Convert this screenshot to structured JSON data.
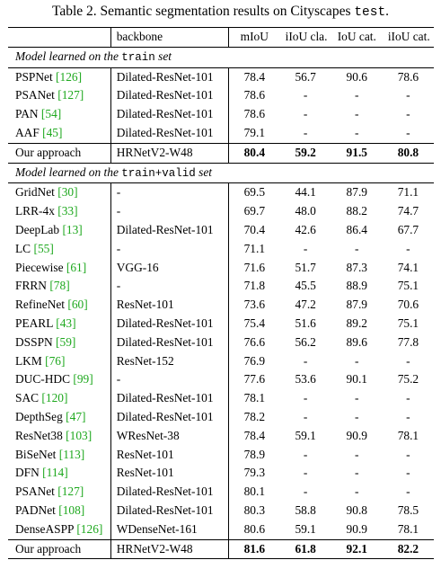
{
  "caption": {
    "prefix": "Table 2. Semantic segmentation results on Cityscapes ",
    "split": "test",
    "suffix": "."
  },
  "header": {
    "method": "",
    "backbone": "backbone",
    "miou": "mIoU",
    "iiou_cla": "iIoU cla.",
    "iou_cat": "IoU cat.",
    "iiou_cat": "iIoU cat."
  },
  "sections": [
    {
      "title_prefix": "Model learned on the ",
      "title_split": "train",
      "title_suffix": " set",
      "rows": [
        {
          "name": "PSPNet",
          "cite": "[126]",
          "backbone": "Dilated-ResNet-101",
          "miou": "78.4",
          "iiou_cla": "56.7",
          "iou_cat": "90.6",
          "iiou_cat": "78.6"
        },
        {
          "name": "PSANet",
          "cite": "[127]",
          "backbone": "Dilated-ResNet-101",
          "miou": "78.6",
          "iiou_cla": "-",
          "iou_cat": "-",
          "iiou_cat": "-"
        },
        {
          "name": "PAN",
          "cite": "[54]",
          "backbone": "Dilated-ResNet-101",
          "miou": "78.6",
          "iiou_cla": "-",
          "iou_cat": "-",
          "iiou_cat": "-"
        },
        {
          "name": "AAF",
          "cite": "[45]",
          "backbone": "Dilated-ResNet-101",
          "miou": "79.1",
          "iiou_cla": "-",
          "iou_cat": "-",
          "iiou_cat": "-"
        }
      ],
      "ours": {
        "name": "Our approach",
        "backbone": "HRNetV2-W48",
        "miou": "80.4",
        "iiou_cla": "59.2",
        "iou_cat": "91.5",
        "iiou_cat": "80.8"
      }
    },
    {
      "title_prefix": "Model learned on the ",
      "title_split": "train+valid",
      "title_suffix": " set",
      "rows": [
        {
          "name": "GridNet",
          "cite": "[30]",
          "backbone": "-",
          "miou": "69.5",
          "iiou_cla": "44.1",
          "iou_cat": "87.9",
          "iiou_cat": "71.1"
        },
        {
          "name": "LRR-4x",
          "cite": "[33]",
          "backbone": "-",
          "miou": "69.7",
          "iiou_cla": "48.0",
          "iou_cat": "88.2",
          "iiou_cat": "74.7"
        },
        {
          "name": "DeepLab",
          "cite": "[13]",
          "backbone": "Dilated-ResNet-101",
          "miou": "70.4",
          "iiou_cla": "42.6",
          "iou_cat": "86.4",
          "iiou_cat": "67.7"
        },
        {
          "name": "LC",
          "cite": "[55]",
          "backbone": "-",
          "miou": "71.1",
          "iiou_cla": "-",
          "iou_cat": "-",
          "iiou_cat": "-"
        },
        {
          "name": "Piecewise",
          "cite": "[61]",
          "backbone": "VGG-16",
          "miou": "71.6",
          "iiou_cla": "51.7",
          "iou_cat": "87.3",
          "iiou_cat": "74.1"
        },
        {
          "name": "FRRN",
          "cite": "[78]",
          "backbone": "-",
          "miou": "71.8",
          "iiou_cla": "45.5",
          "iou_cat": "88.9",
          "iiou_cat": "75.1"
        },
        {
          "name": "RefineNet",
          "cite": "[60]",
          "backbone": "ResNet-101",
          "miou": "73.6",
          "iiou_cla": "47.2",
          "iou_cat": "87.9",
          "iiou_cat": "70.6"
        },
        {
          "name": "PEARL",
          "cite": "[43]",
          "backbone": "Dilated-ResNet-101",
          "miou": "75.4",
          "iiou_cla": "51.6",
          "iou_cat": "89.2",
          "iiou_cat": "75.1"
        },
        {
          "name": "DSSPN",
          "cite": "[59]",
          "backbone": "Dilated-ResNet-101",
          "miou": "76.6",
          "iiou_cla": "56.2",
          "iou_cat": "89.6",
          "iiou_cat": "77.8"
        },
        {
          "name": "LKM",
          "cite": "[76]",
          "backbone": "ResNet-152",
          "miou": "76.9",
          "iiou_cla": "-",
          "iou_cat": "-",
          "iiou_cat": "-"
        },
        {
          "name": "DUC-HDC",
          "cite": "[99]",
          "backbone": "-",
          "miou": "77.6",
          "iiou_cla": "53.6",
          "iou_cat": "90.1",
          "iiou_cat": "75.2"
        },
        {
          "name": "SAC",
          "cite": "[120]",
          "backbone": "Dilated-ResNet-101",
          "miou": "78.1",
          "iiou_cla": "-",
          "iou_cat": "-",
          "iiou_cat": "-"
        },
        {
          "name": "DepthSeg",
          "cite": "[47]",
          "backbone": "Dilated-ResNet-101",
          "miou": "78.2",
          "iiou_cla": "-",
          "iou_cat": "-",
          "iiou_cat": "-"
        },
        {
          "name": "ResNet38",
          "cite": "[103]",
          "backbone": "WResNet-38",
          "miou": "78.4",
          "iiou_cla": "59.1",
          "iou_cat": "90.9",
          "iiou_cat": "78.1"
        },
        {
          "name": "BiSeNet",
          "cite": "[113]",
          "backbone": "ResNet-101",
          "miou": "78.9",
          "iiou_cla": "-",
          "iou_cat": "-",
          "iiou_cat": "-"
        },
        {
          "name": "DFN",
          "cite": "[114]",
          "backbone": "ResNet-101",
          "miou": "79.3",
          "iiou_cla": "-",
          "iou_cat": "-",
          "iiou_cat": "-"
        },
        {
          "name": "PSANet",
          "cite": "[127]",
          "backbone": "Dilated-ResNet-101",
          "miou": "80.1",
          "iiou_cla": "-",
          "iou_cat": "-",
          "iiou_cat": "-"
        },
        {
          "name": "PADNet",
          "cite": "[108]",
          "backbone": "Dilated-ResNet-101",
          "miou": "80.3",
          "iiou_cla": "58.8",
          "iou_cat": "90.8",
          "iiou_cat": "78.5"
        },
        {
          "name": "DenseASPP",
          "cite": "[126]",
          "backbone": "WDenseNet-161",
          "miou": "80.6",
          "iiou_cla": "59.1",
          "iou_cat": "90.9",
          "iiou_cat": "78.1"
        }
      ],
      "ours": {
        "name": "Our approach",
        "backbone": "HRNetV2-W48",
        "miou": "81.6",
        "iiou_cla": "61.8",
        "iou_cat": "92.1",
        "iiou_cat": "82.2"
      }
    }
  ]
}
